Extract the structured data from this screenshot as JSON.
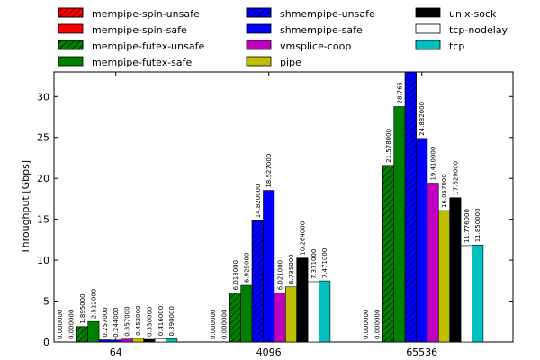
{
  "chart_data": {
    "type": "bar",
    "categories": [
      "64",
      "4096",
      "65536"
    ],
    "xlabel": "",
    "ylabel": "Throughput [Gbps]",
    "ylim": [
      0,
      33
    ],
    "yticks": [
      0,
      5,
      10,
      15,
      20,
      25,
      30
    ],
    "grid": false,
    "legend_position": "top",
    "series": [
      {
        "name": "mempipe-spin-unsafe",
        "color": "#ff0000",
        "hatch": true,
        "values": [
          0.0,
          0.0,
          0.0
        ],
        "labels": [
          "0.000000",
          "0.000000",
          "0.000000"
        ]
      },
      {
        "name": "mempipe-spin-safe",
        "color": "#ff0000",
        "hatch": false,
        "values": [
          0.0,
          0.0,
          0.0
        ],
        "labels": [
          "0.000000",
          "0.000000",
          "0.000000"
        ]
      },
      {
        "name": "mempipe-futex-unsafe",
        "color": "#008000",
        "hatch": true,
        "values": [
          1.895,
          6.013,
          21.578
        ],
        "labels": [
          "1.895000",
          "6.013000",
          "21.578000"
        ]
      },
      {
        "name": "mempipe-futex-safe",
        "color": "#008000",
        "hatch": false,
        "values": [
          2.512,
          6.925,
          28.765
        ],
        "labels": [
          "2.512000",
          "6.925000",
          "28.765"
        ]
      },
      {
        "name": "shmempipe-unsafe",
        "color": "#0000ff",
        "hatch": true,
        "values": [
          0.257,
          14.82,
          33.5
        ],
        "labels": [
          "0.257000",
          "14.820000",
          ""
        ]
      },
      {
        "name": "shmempipe-safe",
        "color": "#0000ff",
        "hatch": false,
        "values": [
          0.244,
          18.527,
          24.882
        ],
        "labels": [
          "0.244000",
          "18.527000",
          "24.882000"
        ]
      },
      {
        "name": "vmsplice-coop",
        "color": "#bf00bf",
        "hatch": false,
        "values": [
          0.357,
          6.021,
          19.41
        ],
        "labels": [
          "0.357000",
          "6.021000",
          "19.410000"
        ]
      },
      {
        "name": "pipe",
        "color": "#bfbf00",
        "hatch": false,
        "values": [
          0.452,
          6.735,
          16.057
        ],
        "labels": [
          "0.452000",
          "6.735000",
          "16.057000"
        ]
      },
      {
        "name": "unix-sock",
        "color": "#000000",
        "hatch": false,
        "values": [
          0.33,
          10.264,
          17.629
        ],
        "labels": [
          "0.330000",
          "10.264000",
          "17.629000"
        ]
      },
      {
        "name": "tcp-nodelay",
        "color": "#ffffff",
        "hatch": false,
        "values": [
          0.416,
          7.371,
          11.776
        ],
        "labels": [
          "0.416000",
          "7.371000",
          "11.776000"
        ]
      },
      {
        "name": "tcp",
        "color": "#00bfbf",
        "hatch": false,
        "values": [
          0.39,
          7.471,
          11.85
        ],
        "labels": [
          "0.390000",
          "7.471000",
          "11.850000"
        ]
      }
    ]
  }
}
